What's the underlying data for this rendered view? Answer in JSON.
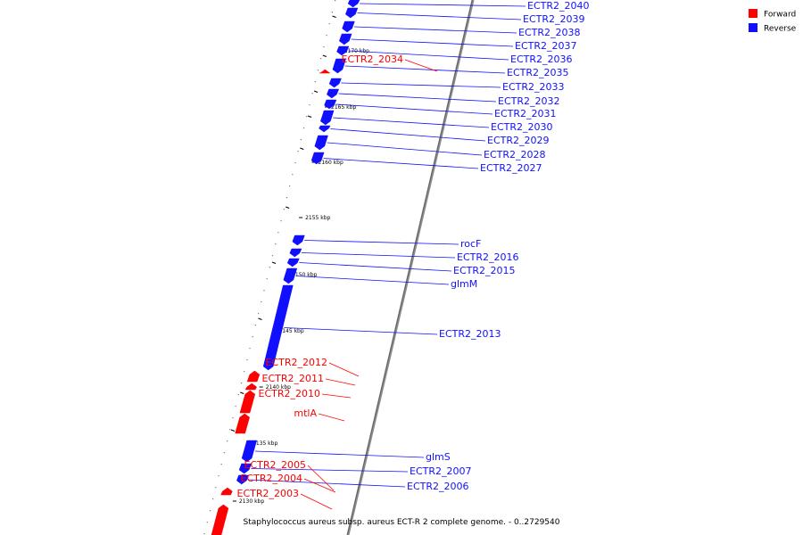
{
  "caption": "Staphylococcus aureus subsp. aureus ECT-R 2 complete genome. - 0..2729540",
  "legend": {
    "forward": {
      "label": "Forward",
      "color": "#ff0000"
    },
    "reverse": {
      "label": "Reverse",
      "color": "#1010ff"
    }
  },
  "ticks": [
    {
      "label": "2130 kbp"
    },
    {
      "label": "2135 kbp"
    },
    {
      "label": "2140 kbp"
    },
    {
      "label": "2145 kbp"
    },
    {
      "label": "2150 kbp"
    },
    {
      "label": "2155 kbp"
    },
    {
      "label": "2160 kbp"
    },
    {
      "label": "2165 kbp"
    },
    {
      "label": "2170 kbp"
    }
  ],
  "genes_reverse": [
    {
      "name": "ECTR2_2040"
    },
    {
      "name": "ECTR2_2039"
    },
    {
      "name": "ECTR2_2038"
    },
    {
      "name": "ECTR2_2037"
    },
    {
      "name": "ECTR2_2036"
    },
    {
      "name": "ECTR2_2035"
    },
    {
      "name": "ECTR2_2033"
    },
    {
      "name": "ECTR2_2032"
    },
    {
      "name": "ECTR2_2031"
    },
    {
      "name": "ECTR2_2030"
    },
    {
      "name": "ECTR2_2029"
    },
    {
      "name": "ECTR2_2028"
    },
    {
      "name": "ECTR2_2027"
    },
    {
      "name": "rocF"
    },
    {
      "name": "ECTR2_2016"
    },
    {
      "name": "ECTR2_2015"
    },
    {
      "name": "glmM"
    },
    {
      "name": "ECTR2_2013"
    },
    {
      "name": "glmS"
    },
    {
      "name": "ECTR2_2007"
    },
    {
      "name": "ECTR2_2006"
    }
  ],
  "genes_forward": [
    {
      "name": "ECTR2_2034"
    },
    {
      "name": "ECTR2_2012"
    },
    {
      "name": "ECTR2_2011"
    },
    {
      "name": "ECTR2_2010"
    },
    {
      "name": "mtlA"
    },
    {
      "name": "ECTR2_2005"
    },
    {
      "name": "ECTR2_2004"
    },
    {
      "name": "ECTR2_2003"
    }
  ]
}
